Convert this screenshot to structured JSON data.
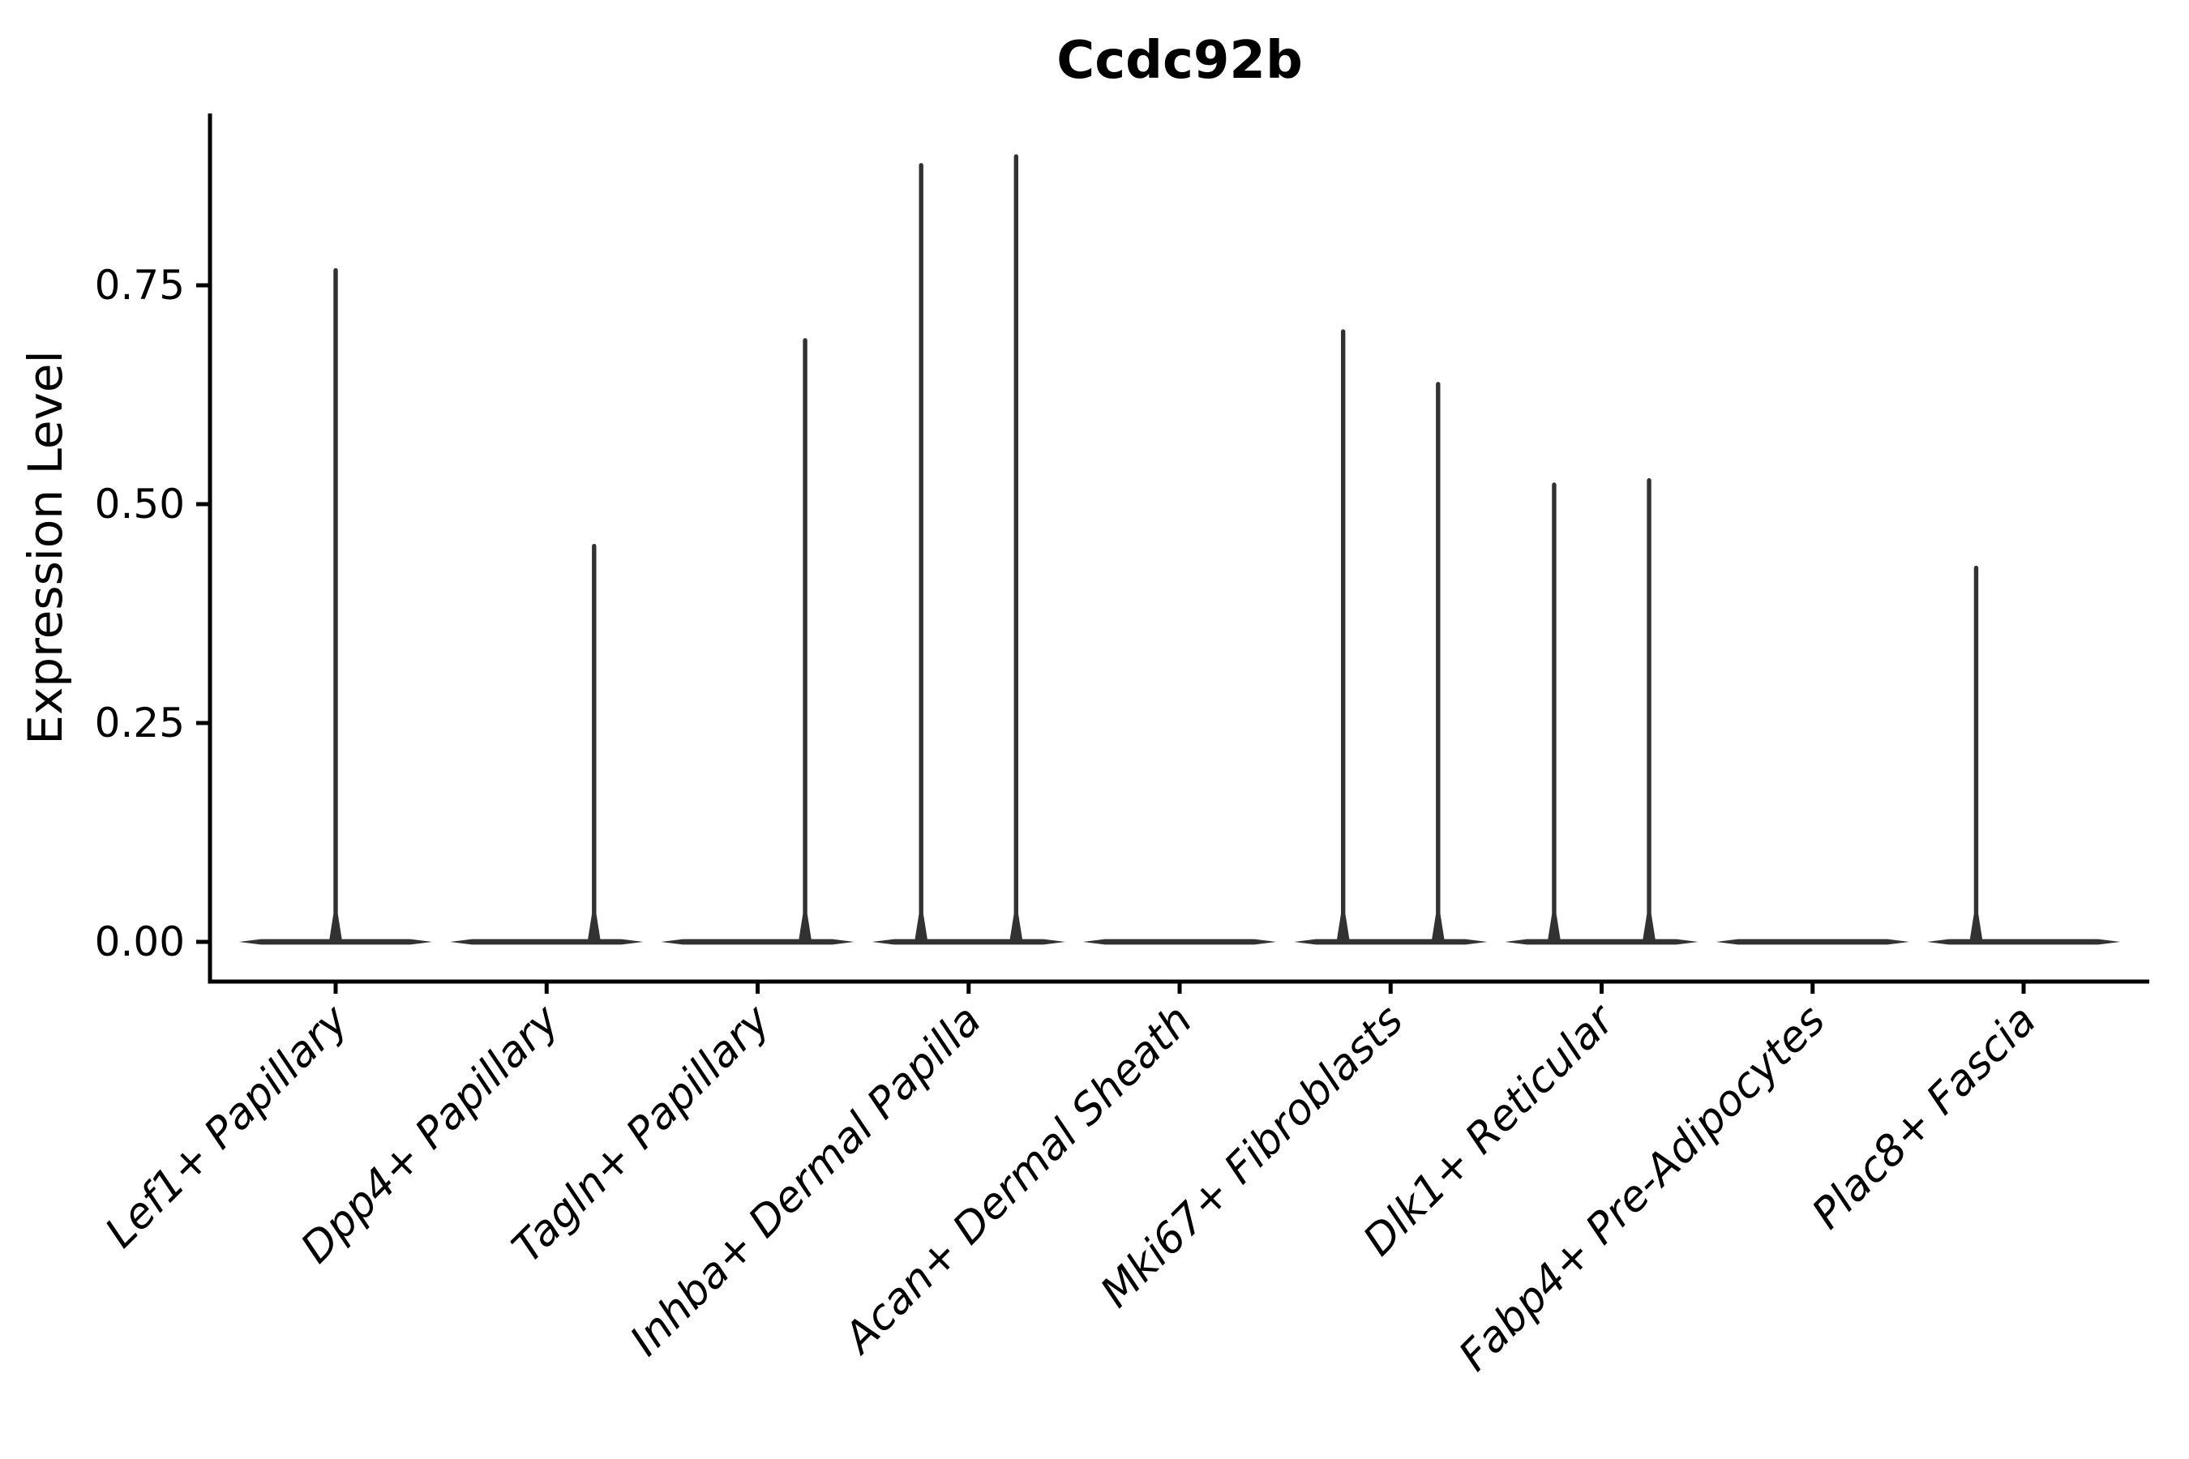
{
  "chart_data": {
    "type": "violin",
    "title": "Ccdc92b",
    "xlabel": "",
    "ylabel": "Expression Level",
    "legend": "none",
    "grid": false,
    "categories": [
      "Lef1+ Papillary",
      "Dpp4+ Papillary",
      "Tagln+ Papillary",
      "Inhba+ Dermal Papilla",
      "Acan+ Dermal Sheath",
      "Mki67+ Fibroblasts",
      "Dlk1+ Reticular",
      "Fabp4+ Pre-Adipocytes",
      "Plac8+ Fascia"
    ],
    "yticks": [
      "0.00",
      "0.25",
      "0.50",
      "0.75"
    ],
    "ytick_values": [
      0.0,
      0.25,
      0.5,
      0.75
    ],
    "ylim": [
      -0.045,
      0.946
    ],
    "violins": [
      {
        "category": "Lef1+ Papillary",
        "base_halfwidth_frac": 0.458,
        "spikes": [
          {
            "offset_frac": 0.0,
            "peak": 0.77
          }
        ]
      },
      {
        "category": "Dpp4+ Papillary",
        "base_halfwidth_frac": 0.458,
        "spikes": [
          {
            "offset_frac": 0.225,
            "peak": 0.455
          }
        ]
      },
      {
        "category": "Tagln+ Papillary",
        "base_halfwidth_frac": 0.458,
        "spikes": [
          {
            "offset_frac": 0.225,
            "peak": 0.69
          }
        ]
      },
      {
        "category": "Inhba+ Dermal Papilla",
        "base_halfwidth_frac": 0.458,
        "spikes": [
          {
            "offset_frac": -0.225,
            "peak": 0.89
          },
          {
            "offset_frac": 0.225,
            "peak": 0.9
          }
        ]
      },
      {
        "category": "Acan+ Dermal Sheath",
        "base_halfwidth_frac": 0.458,
        "spikes": []
      },
      {
        "category": "Mki67+ Fibroblasts",
        "base_halfwidth_frac": 0.458,
        "spikes": [
          {
            "offset_frac": -0.225,
            "peak": 0.7
          },
          {
            "offset_frac": 0.225,
            "peak": 0.64
          }
        ]
      },
      {
        "category": "Dlk1+ Reticular",
        "base_halfwidth_frac": 0.458,
        "spikes": [
          {
            "offset_frac": -0.225,
            "peak": 0.525
          },
          {
            "offset_frac": 0.225,
            "peak": 0.53
          }
        ]
      },
      {
        "category": "Fabp4+ Pre-Adipocytes",
        "base_halfwidth_frac": 0.458,
        "spikes": []
      },
      {
        "category": "Plac8+ Fascia",
        "base_halfwidth_frac": 0.458,
        "spikes": [
          {
            "offset_frac": -0.225,
            "peak": 0.43
          }
        ]
      }
    ],
    "colors": {
      "violin": "#323232",
      "axis": "#000000",
      "background": "#ffffff"
    }
  }
}
